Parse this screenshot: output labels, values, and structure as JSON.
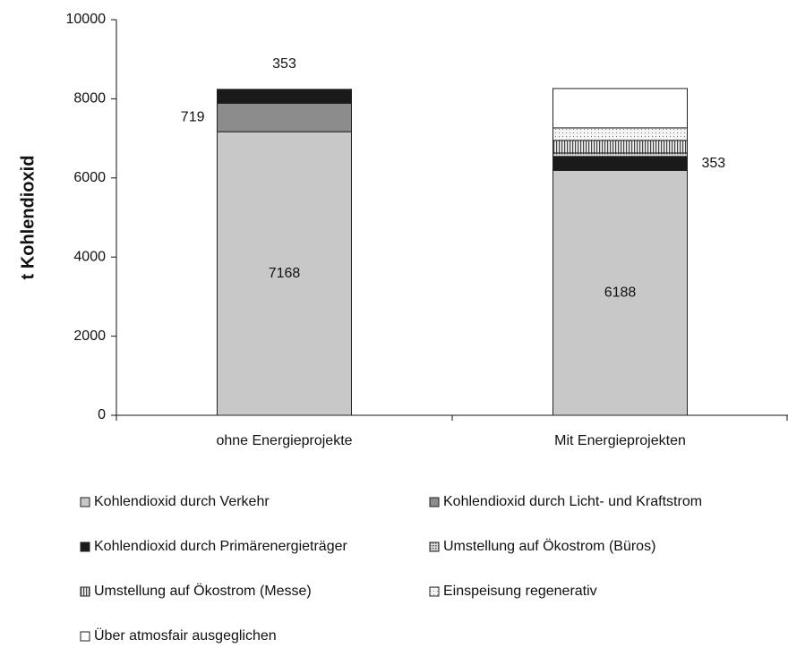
{
  "chart_data": {
    "type": "stacked-bar",
    "y_label": "t Kohlendioxid",
    "categories": [
      "ohne Energieprojekte",
      "Mit Energieprojekten"
    ],
    "series": [
      {
        "name": "Kohlendioxid durch Verkehr",
        "color": "#c8c8c8",
        "values": [
          7168,
          6188
        ],
        "show_labels": true
      },
      {
        "name": "Kohlendioxid durch Licht- und Kraftstrom",
        "color": "#8c8c8c",
        "values": [
          719,
          null
        ],
        "show_labels": true
      },
      {
        "name": "Kohlendioxid durch Primärenergieträger",
        "color": "#1a1a1a",
        "values": [
          353,
          353
        ],
        "show_labels": true
      },
      {
        "name": "Umstellung auf Ökostrom (Büros)",
        "color": "#b4b4b4",
        "pattern": "dots",
        "values": [
          null,
          90
        ]
      },
      {
        "name": "Umstellung auf Ökostrom (Messe)",
        "color": "#a0a0a0",
        "pattern": "vstripes",
        "values": [
          null,
          317
        ]
      },
      {
        "name": "Einspeisung regenerativ",
        "color": "#d8d8d8",
        "pattern": "fine-dots",
        "values": [
          null,
          317
        ]
      },
      {
        "name": "Über atmosfair ausgeglichen",
        "color": "#ffffff",
        "values": [
          null,
          995
        ]
      }
    ],
    "ylim": [
      0,
      10000
    ],
    "yticks": [
      0,
      2000,
      4000,
      6000,
      8000,
      10000
    ]
  }
}
